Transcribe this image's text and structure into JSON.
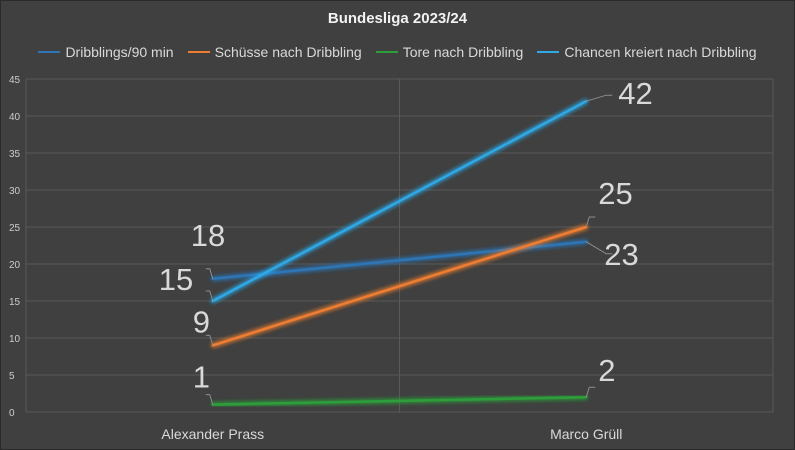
{
  "chart_data": {
    "type": "line",
    "title": "Bundesliga 2023/24",
    "categories": [
      "Alexander Prass",
      "Marco Grüll"
    ],
    "ylim": [
      0,
      45
    ],
    "ytick_step": 5,
    "yticks": [
      "0",
      "5",
      "10",
      "15",
      "20",
      "25",
      "30",
      "35",
      "40",
      "45"
    ],
    "grid": true,
    "legend_position": "top",
    "series": [
      {
        "name": "Dribblings/90 min",
        "values": [
          18,
          23
        ],
        "labels": [
          "18",
          "23"
        ],
        "color": "#2e75b6"
      },
      {
        "name": "Schüsse nach Dribbling",
        "values": [
          9,
          25
        ],
        "labels": [
          "9",
          "25"
        ],
        "color": "#ed7d31"
      },
      {
        "name": "Tore nach Dribbling",
        "values": [
          1,
          2
        ],
        "labels": [
          "1",
          "2"
        ],
        "color": "#2e9e3a"
      },
      {
        "name": "Chancen kreiert nach Dribbling",
        "values": [
          15,
          42
        ],
        "labels": [
          "15",
          "42"
        ],
        "color": "#2fa8e6"
      }
    ]
  }
}
